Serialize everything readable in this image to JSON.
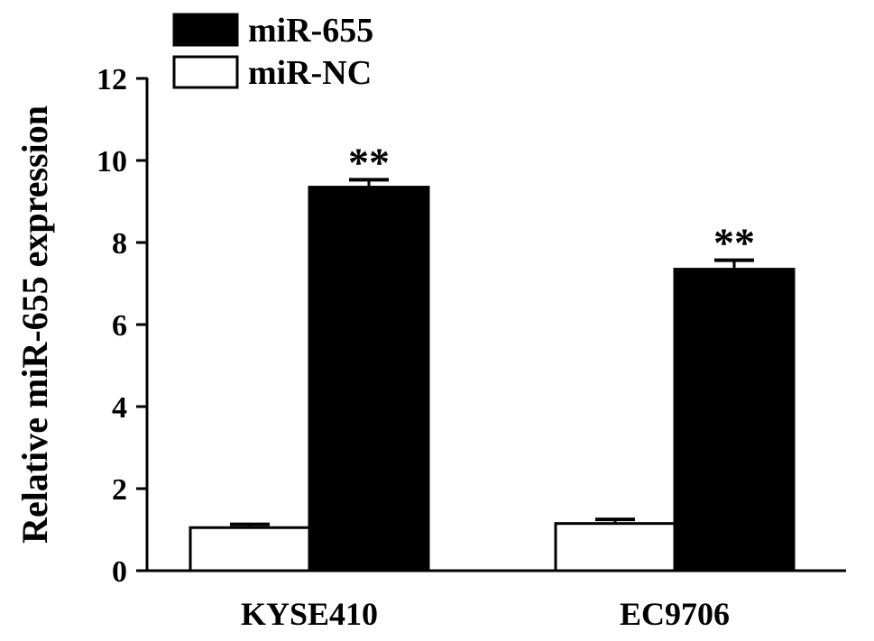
{
  "chart_data": {
    "type": "bar",
    "title": "",
    "xlabel": "",
    "ylabel": "Relative miR-655 expression",
    "ylim": [
      0,
      12
    ],
    "yticks": [
      0,
      2,
      4,
      6,
      8,
      10,
      12
    ],
    "categories": [
      "KYSE410",
      "EC9706"
    ],
    "series": [
      {
        "name": "miR-NC",
        "values": [
          1.05,
          1.15
        ],
        "errors": [
          0.08,
          0.1
        ],
        "color": "#ffffff"
      },
      {
        "name": "miR-655",
        "values": [
          9.35,
          7.35
        ],
        "errors": [
          0.18,
          0.22
        ],
        "color": "#000000"
      }
    ],
    "annotations": [
      {
        "series": "miR-655",
        "category": "KYSE410",
        "text": "**"
      },
      {
        "series": "miR-655",
        "category": "EC9706",
        "text": "**"
      }
    ],
    "legend": {
      "placement": "top-left",
      "order": [
        "miR-655",
        "miR-NC"
      ]
    },
    "grid": false
  }
}
